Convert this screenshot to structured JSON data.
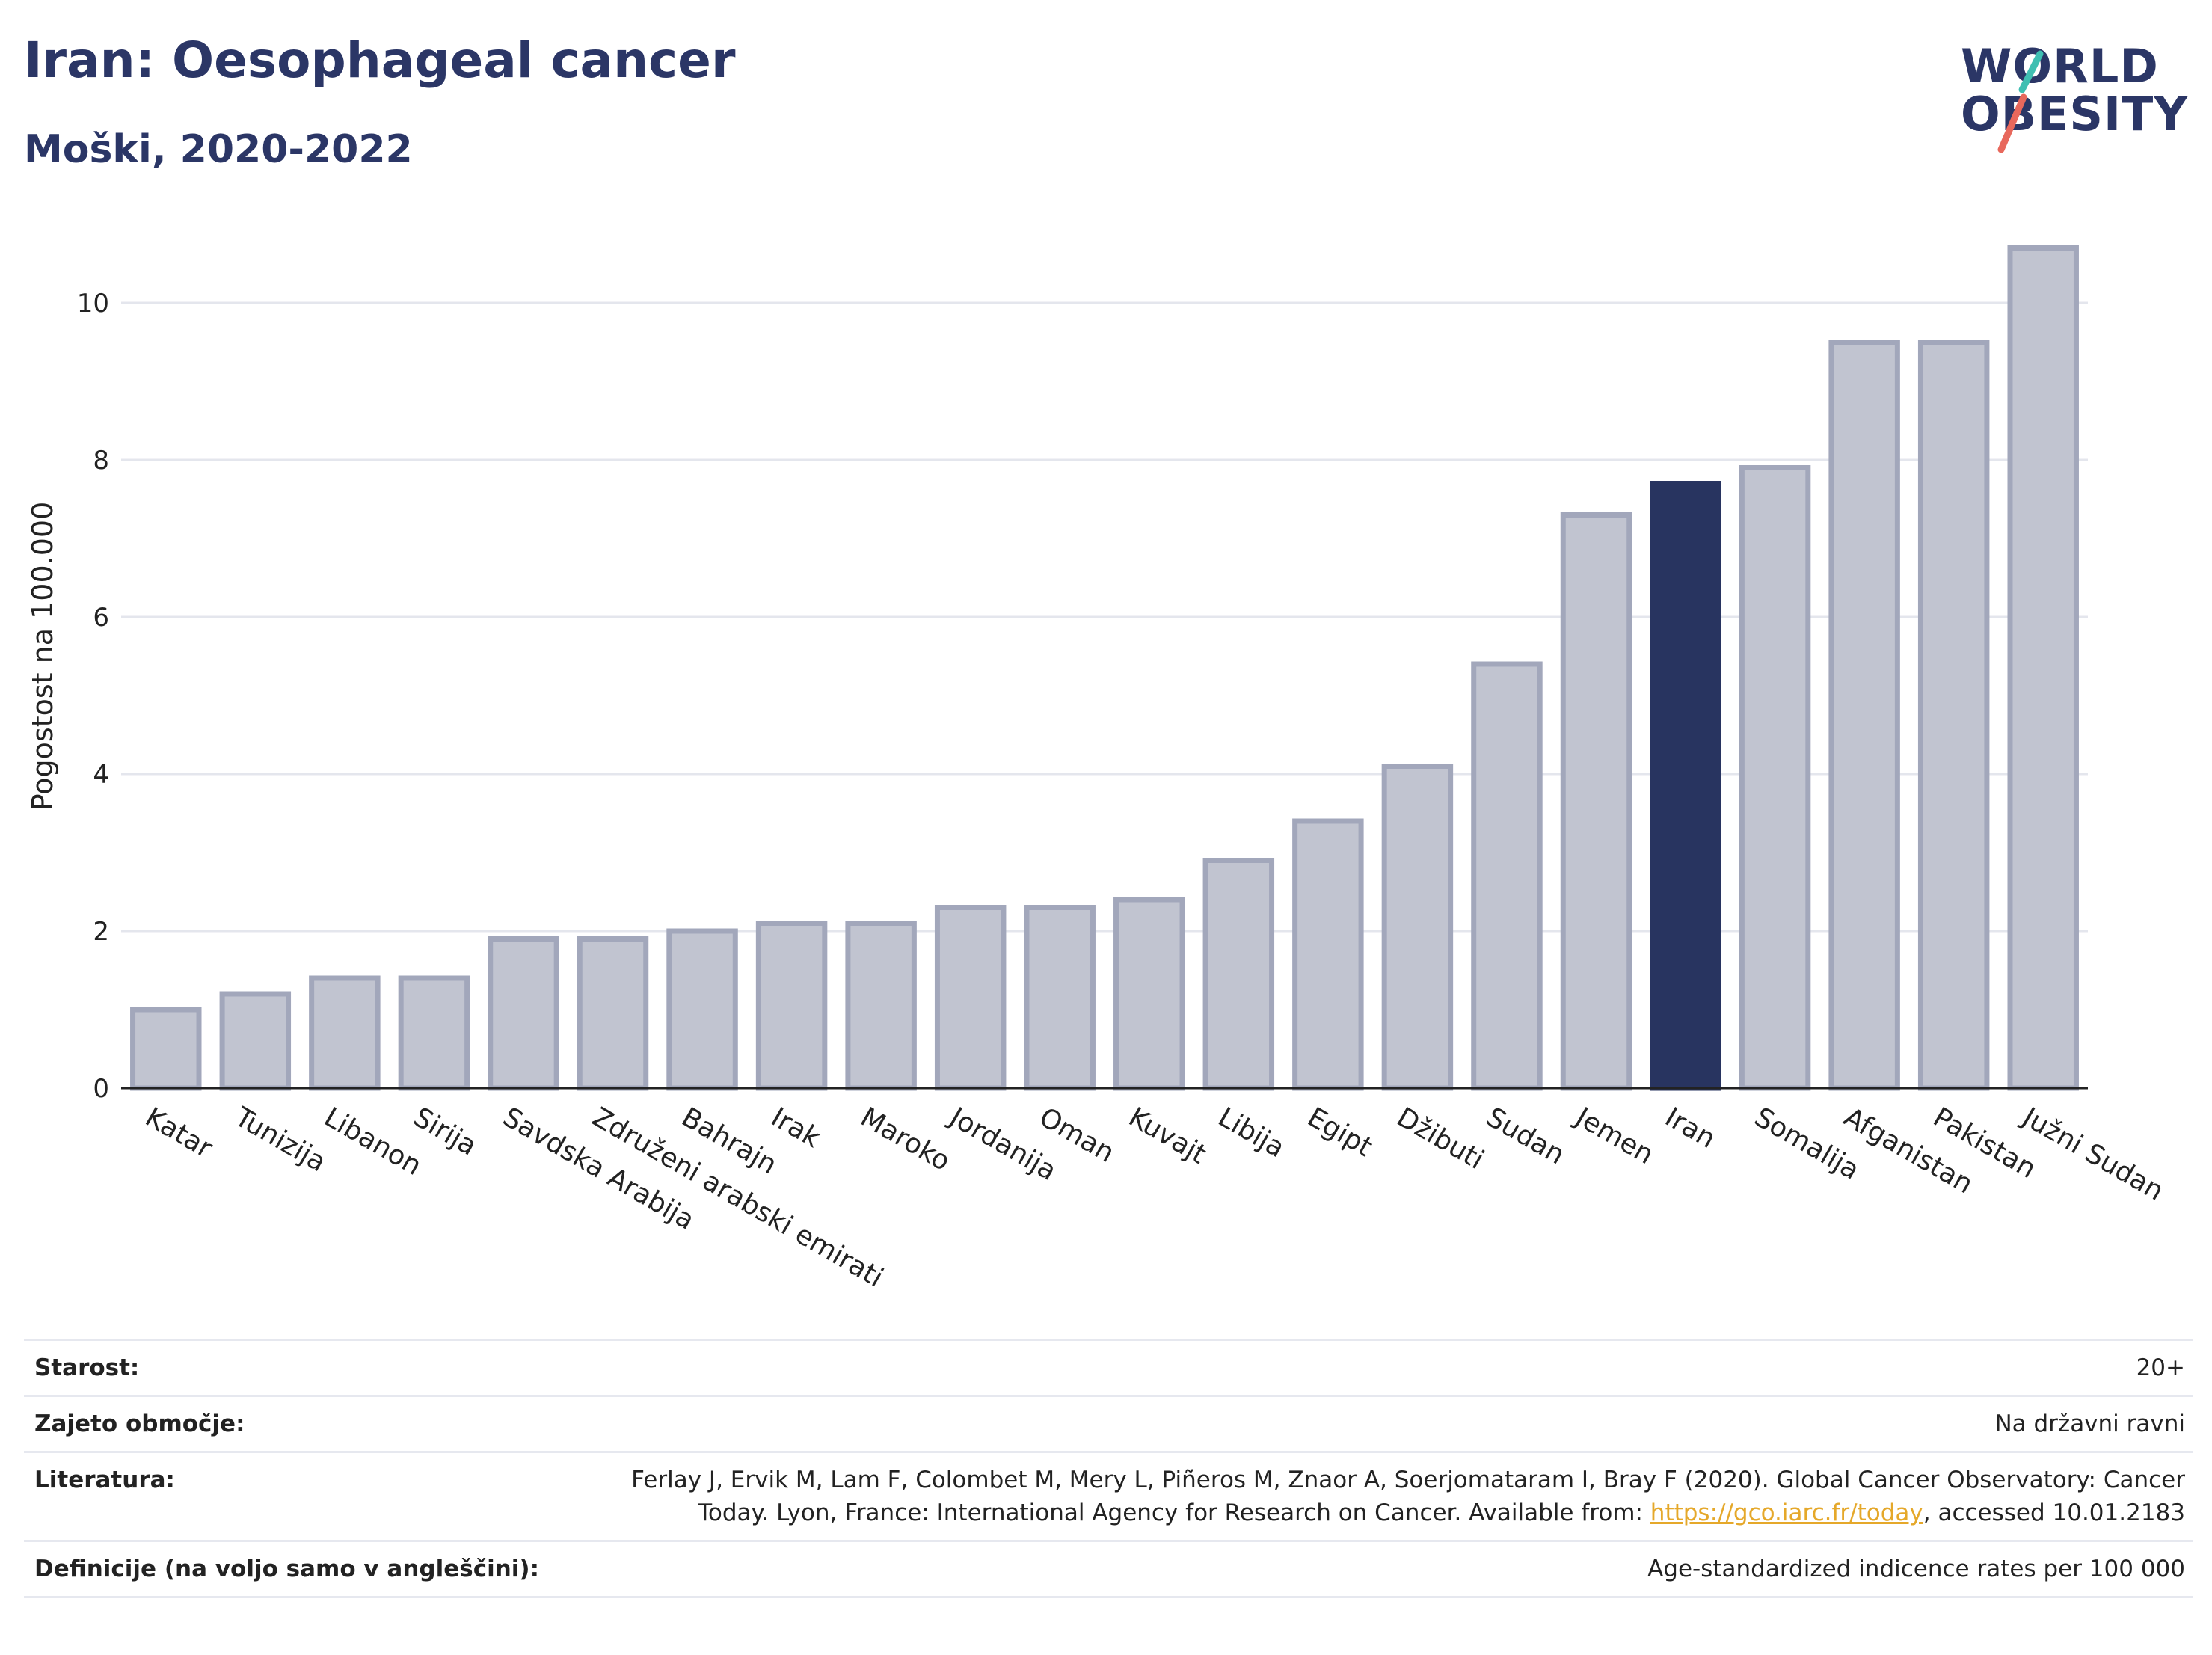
{
  "header": {
    "title": "Iran: Oesophageal cancer",
    "subtitle": "Moški, 2020-2022"
  },
  "logo": {
    "line1": "WORLD",
    "line2": "OBESITY",
    "accent_colors": [
      "#3fbfb2",
      "#e8685c"
    ]
  },
  "chart_data": {
    "type": "bar",
    "ylabel": "Pogostost na 100.000",
    "xlabel": "",
    "ylim": [
      0,
      11
    ],
    "yticks": [
      0,
      2,
      4,
      6,
      8,
      10
    ],
    "grid": true,
    "categories": [
      "Katar",
      "Tunizija",
      "Libanon",
      "Sirija",
      "Savdska Arabija",
      "Združeni arabski emirati",
      "Bahrajn",
      "Irak",
      "Maroko",
      "Jordanija",
      "Oman",
      "Kuvajt",
      "Libija",
      "Egipt",
      "Džibuti",
      "Sudan",
      "Jemen",
      "Iran",
      "Somalija",
      "Afganistan",
      "Pakistan",
      "Južni Sudan"
    ],
    "values": [
      1.0,
      1.2,
      1.4,
      1.4,
      1.9,
      1.9,
      2.0,
      2.1,
      2.1,
      2.3,
      2.3,
      2.4,
      2.9,
      3.4,
      4.1,
      5.4,
      7.3,
      7.7,
      7.9,
      9.5,
      9.5,
      10.7
    ],
    "highlight": "Iran",
    "colors": {
      "bar": "#c1c4d0",
      "bar_border": "#a2a7bb",
      "highlight": "#283460"
    }
  },
  "meta": [
    {
      "label": "Starost:",
      "value": "20+"
    },
    {
      "label": "Zajeto območje:",
      "value": "Na državni ravni"
    },
    {
      "label": "Literatura:",
      "value_pre": "Ferlay J, Ervik M, Lam F, Colombet M, Mery L, Piñeros M, Znaor A, Soerjomataram I, Bray F (2020). Global Cancer Observatory: Cancer Today. Lyon, France: International Agency for Research on Cancer. Available from: ",
      "link": "https://gco.iarc.fr/today",
      "value_post": ", accessed 10.01.2183"
    },
    {
      "label": "Definicije (na voljo samo v angleščini):",
      "value": "Age-standardized indicence rates per 100 000"
    }
  ]
}
